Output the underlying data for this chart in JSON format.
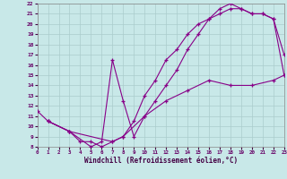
{
  "xlabel": "Windchill (Refroidissement éolien,°C)",
  "bg_color": "#c8e8e8",
  "grid_color": "#aacccc",
  "line_color": "#880088",
  "xlim": [
    0,
    23
  ],
  "ylim": [
    8,
    22
  ],
  "xticks": [
    0,
    1,
    2,
    3,
    4,
    5,
    6,
    7,
    8,
    9,
    10,
    11,
    12,
    13,
    14,
    15,
    16,
    17,
    18,
    19,
    20,
    21,
    22,
    23
  ],
  "yticks": [
    8,
    9,
    10,
    11,
    12,
    13,
    14,
    15,
    16,
    17,
    18,
    19,
    20,
    21,
    22
  ],
  "line1_x": [
    0,
    1,
    3,
    4,
    5,
    6,
    7,
    8,
    9,
    10,
    11,
    12,
    13,
    14,
    15,
    16,
    17,
    18,
    19,
    20,
    21,
    22,
    23
  ],
  "line1_y": [
    11.5,
    10.5,
    9.5,
    8.5,
    8.5,
    8.0,
    8.5,
    9.0,
    10.5,
    13.0,
    14.5,
    16.5,
    17.5,
    19.0,
    20.0,
    20.5,
    21.5,
    22.0,
    21.5,
    21.0,
    21.0,
    20.5,
    17.0
  ],
  "line2_x": [
    1,
    3,
    5,
    6,
    7,
    8,
    9,
    10,
    11,
    12,
    13,
    14,
    15,
    16,
    17,
    18,
    19,
    20,
    21,
    22,
    23
  ],
  "line2_y": [
    10.5,
    9.5,
    8.0,
    8.5,
    16.5,
    12.5,
    9.0,
    11.0,
    12.5,
    14.0,
    15.5,
    17.5,
    19.0,
    20.5,
    21.0,
    21.5,
    21.5,
    21.0,
    21.0,
    20.5,
    15.0
  ],
  "line3_x": [
    1,
    3,
    7,
    8,
    10,
    12,
    14,
    16,
    18,
    20,
    22,
    23
  ],
  "line3_y": [
    10.5,
    9.5,
    8.5,
    9.0,
    11.0,
    12.5,
    13.5,
    14.5,
    14.0,
    14.0,
    14.5,
    15.0
  ],
  "xlabel_fontsize": 5.5,
  "tick_fontsize": 4.5,
  "lw": 0.8,
  "ms": 3.5
}
